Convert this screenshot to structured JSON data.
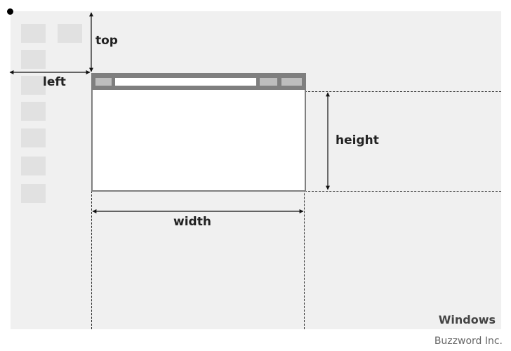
{
  "labels": {
    "top": "top",
    "left": "left",
    "height": "height",
    "width": "width"
  },
  "desktop": {
    "os_label": "Windows"
  },
  "credit": "Buzzword Inc.",
  "colors": {
    "desktop_bg": "#f0f0f0",
    "desktop_icon": "#e1e1e1",
    "window_frame": "#7f7f7f",
    "window_button": "#bdbdbd",
    "window_body": "#ffffff"
  }
}
